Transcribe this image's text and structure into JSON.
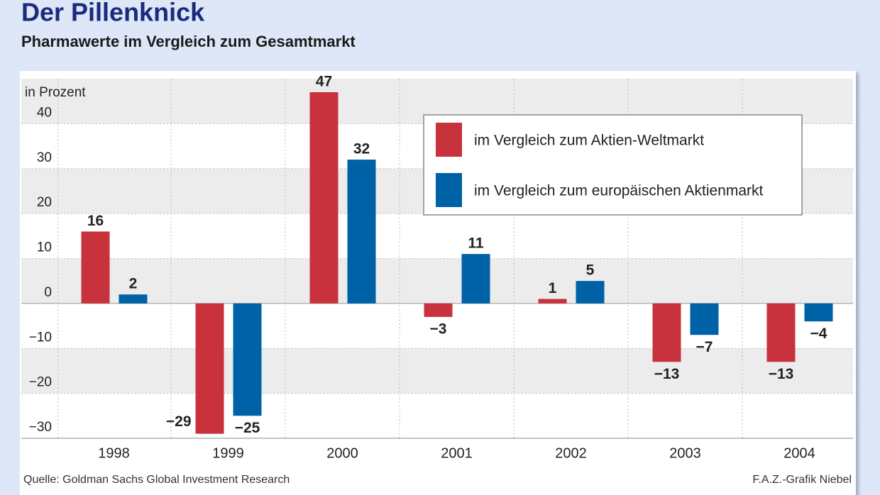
{
  "chart_data": {
    "type": "bar",
    "title": "Der Pillenknick",
    "subtitle": "Pharmawerte im Vergleich zum Gesamtmarkt",
    "y_label": "in Prozent",
    "source": "Quelle: Goldman Sachs Global Investment Research",
    "credit": "F.A.Z.-Grafik Niebel",
    "categories": [
      "1998",
      "1999",
      "2000",
      "2001",
      "2002",
      "2003",
      "2004"
    ],
    "series": [
      {
        "name": "im Vergleich zum Aktien-Weltmarkt",
        "color": "#c8323c",
        "values": [
          16,
          -29,
          47,
          -3,
          1,
          -13,
          -13
        ],
        "value_labels": [
          "16",
          "−29",
          "47",
          "−3",
          "1",
          "−13",
          "−13"
        ]
      },
      {
        "name": "im Vergleich zum europäischen Aktienmarkt",
        "color": "#0062a6",
        "values": [
          2,
          -25,
          32,
          11,
          5,
          -7,
          -4
        ],
        "value_labels": [
          "2",
          "−25",
          "32",
          "11",
          "5",
          "−7",
          "−4"
        ]
      }
    ],
    "ylim": [
      -30,
      50
    ],
    "yticks": [
      {
        "value": -30,
        "label": "−30"
      },
      {
        "value": -20,
        "label": "−20"
      },
      {
        "value": -10,
        "label": "−10"
      },
      0,
      10,
      20,
      30,
      40
    ],
    "grid": true,
    "legend": "top-right"
  }
}
